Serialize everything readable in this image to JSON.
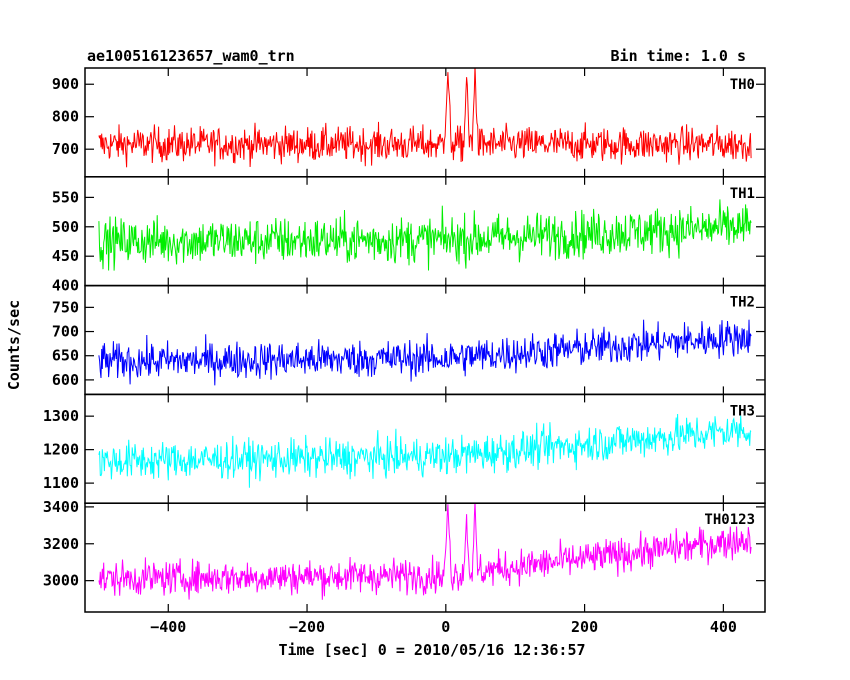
{
  "chart_data": {
    "type": "line",
    "title": "ae100516123657_wam0_trn",
    "subtitle": "Bin time: 1.0 s",
    "xlabel": "Time [sec] 0 = 2010/05/16 12:36:57",
    "ylabel": "Counts/sec",
    "xlim": [
      -520,
      460
    ],
    "x_range": [
      -500,
      440
    ],
    "x_ticks": [
      -400,
      -200,
      0,
      200,
      400
    ],
    "panels": [
      {
        "name": "TH0",
        "color": "#ff0000",
        "ylim": [
          615,
          950
        ],
        "y_ticks": [
          700,
          800,
          900
        ],
        "baseline": [
          [
            -500,
            715
          ],
          [
            0,
            715
          ],
          [
            440,
            715
          ]
        ],
        "noise": 38,
        "bursts": [
          {
            "x": 3,
            "width": 4,
            "peak": 945
          },
          {
            "x": 30,
            "width": 3,
            "peak": 920
          },
          {
            "x": 42,
            "width": 3,
            "peak": 945
          }
        ]
      },
      {
        "name": "TH1",
        "color": "#00ee00",
        "ylim": [
          400,
          585
        ],
        "y_ticks": [
          400,
          450,
          500,
          550
        ],
        "baseline": [
          [
            -500,
            475
          ],
          [
            0,
            478
          ],
          [
            440,
            500
          ]
        ],
        "noise": 28,
        "bursts": []
      },
      {
        "name": "TH2",
        "color": "#0000ff",
        "ylim": [
          570,
          795
        ],
        "y_ticks": [
          600,
          650,
          700,
          750
        ],
        "baseline": [
          [
            -500,
            638
          ],
          [
            0,
            645
          ],
          [
            440,
            690
          ]
        ],
        "noise": 27,
        "bursts": []
      },
      {
        "name": "TH3",
        "color": "#00ffff",
        "ylim": [
          1040,
          1365
        ],
        "y_ticks": [
          1100,
          1200,
          1300
        ],
        "baseline": [
          [
            -500,
            1165
          ],
          [
            0,
            1180
          ],
          [
            440,
            1260
          ]
        ],
        "noise": 40,
        "bursts": []
      },
      {
        "name": "TH0123",
        "color": "#ff00ff",
        "ylim": [
          2830,
          3420
        ],
        "y_ticks": [
          3000,
          3200,
          3400
        ],
        "baseline": [
          [
            -500,
            3010
          ],
          [
            0,
            3030
          ],
          [
            440,
            3225
          ]
        ],
        "noise": 65,
        "bursts": [
          {
            "x": 3,
            "width": 4,
            "peak": 3400
          },
          {
            "x": 30,
            "width": 3,
            "peak": 3330
          },
          {
            "x": 42,
            "width": 3,
            "peak": 3400
          }
        ]
      }
    ]
  }
}
